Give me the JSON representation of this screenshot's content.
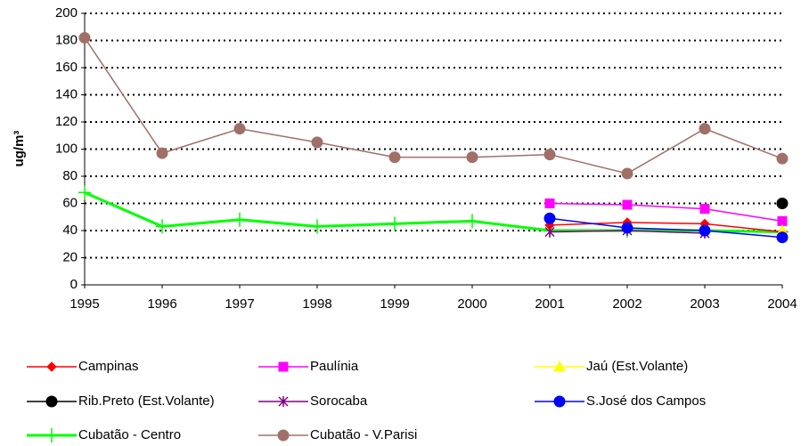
{
  "chart_data": {
    "type": "line",
    "y_label": "ug/m³",
    "categories": [
      "1995",
      "1996",
      "1997",
      "1998",
      "1999",
      "2000",
      "2001",
      "2002",
      "2003",
      "2004"
    ],
    "ylim": [
      0,
      200
    ],
    "yticks": [
      0,
      20,
      40,
      60,
      80,
      100,
      120,
      140,
      160,
      180,
      200
    ],
    "grid": true,
    "series": [
      {
        "name": "Campinas",
        "color": "#ff0000",
        "marker": "diamond",
        "values": [
          null,
          null,
          null,
          null,
          null,
          null,
          44,
          46,
          45,
          39
        ]
      },
      {
        "name": "Paulínia",
        "color": "#ff00ff",
        "marker": "square",
        "values": [
          null,
          null,
          null,
          null,
          null,
          null,
          60,
          59,
          56,
          47
        ]
      },
      {
        "name": "Jaú (Est.Volante)",
        "color": "#ffff00",
        "marker": "triangle",
        "values": [
          null,
          null,
          null,
          null,
          null,
          null,
          null,
          null,
          null,
          40
        ]
      },
      {
        "name": "Rib.Preto (Est.Volante)",
        "color": "#000000",
        "marker": "circle",
        "values": [
          null,
          null,
          null,
          null,
          null,
          null,
          null,
          null,
          null,
          60
        ]
      },
      {
        "name": "Sorocaba",
        "color": "#800080",
        "marker": "star",
        "values": [
          null,
          null,
          null,
          null,
          null,
          null,
          39,
          40,
          38,
          null
        ]
      },
      {
        "name": "S.José dos Campos",
        "color": "#0000ff",
        "marker": "circle",
        "values": [
          null,
          null,
          null,
          null,
          null,
          null,
          49,
          42,
          40,
          35
        ]
      },
      {
        "name": "Cubatão - Centro",
        "color": "#00ff00",
        "marker": "plus",
        "values": [
          68,
          43,
          48,
          43,
          45,
          47,
          40,
          40,
          40,
          39
        ]
      },
      {
        "name": "Cubatão - V.Parisi",
        "color": "#a07068",
        "marker": "circle",
        "values": [
          182,
          97,
          115,
          105,
          94,
          94,
          96,
          82,
          115,
          93
        ]
      }
    ]
  }
}
